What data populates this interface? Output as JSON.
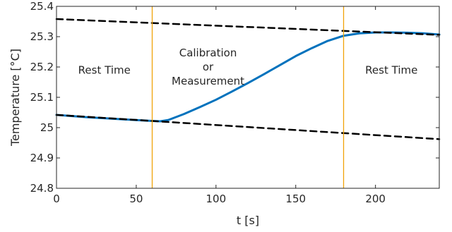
{
  "chart_data": {
    "type": "line",
    "title": "",
    "xlabel": "t [s]",
    "ylabel": "Temperature [°C]",
    "xlim": [
      0,
      240
    ],
    "ylim": [
      24.8,
      25.4
    ],
    "grid": false,
    "x_ticks": [
      0,
      50,
      100,
      150,
      200
    ],
    "x_tick_labels": [
      "0",
      "50",
      "100",
      "150",
      "200"
    ],
    "y_ticks": [
      24.8,
      24.9,
      25.0,
      25.1,
      25.2,
      25.3,
      25.4
    ],
    "y_tick_labels": [
      "24.8",
      "24.9",
      "25",
      "25.1",
      "25.2",
      "25.3",
      "25.4"
    ],
    "series": [
      {
        "style": "solid",
        "color": "#0072BD",
        "x": [
          0,
          10,
          20,
          30,
          40,
          50,
          60,
          65,
          70,
          80,
          90,
          100,
          110,
          120,
          130,
          140,
          150,
          160,
          170,
          180,
          190,
          200,
          210,
          220,
          230,
          240
        ],
        "y": [
          25.042,
          25.038,
          25.034,
          25.031,
          25.028,
          25.025,
          25.022,
          25.021,
          25.025,
          25.045,
          25.068,
          25.092,
          25.119,
          25.147,
          25.176,
          25.206,
          25.236,
          25.262,
          25.286,
          25.303,
          25.311,
          25.314,
          25.314,
          25.313,
          25.311,
          25.307
        ]
      },
      {
        "style": "dashed",
        "color": "#000000",
        "x": [
          0,
          240
        ],
        "y": [
          25.358,
          25.306
        ]
      },
      {
        "style": "dashed",
        "color": "#000000",
        "x": [
          0,
          240
        ],
        "y": [
          25.042,
          24.962
        ]
      }
    ],
    "vlines": [
      {
        "x": 60,
        "color": "#F0A30A"
      },
      {
        "x": 180,
        "color": "#F0A30A"
      }
    ],
    "annotations": [
      {
        "key": "rest-left",
        "lines": [
          "Rest Time"
        ],
        "x": 30,
        "y": 25.19
      },
      {
        "key": "calibration",
        "lines": [
          "Calibration",
          "or",
          "Measurement"
        ],
        "x": 95,
        "y": 25.2
      },
      {
        "key": "rest-right",
        "lines": [
          "Rest Time"
        ],
        "x": 210,
        "y": 25.19
      }
    ]
  }
}
